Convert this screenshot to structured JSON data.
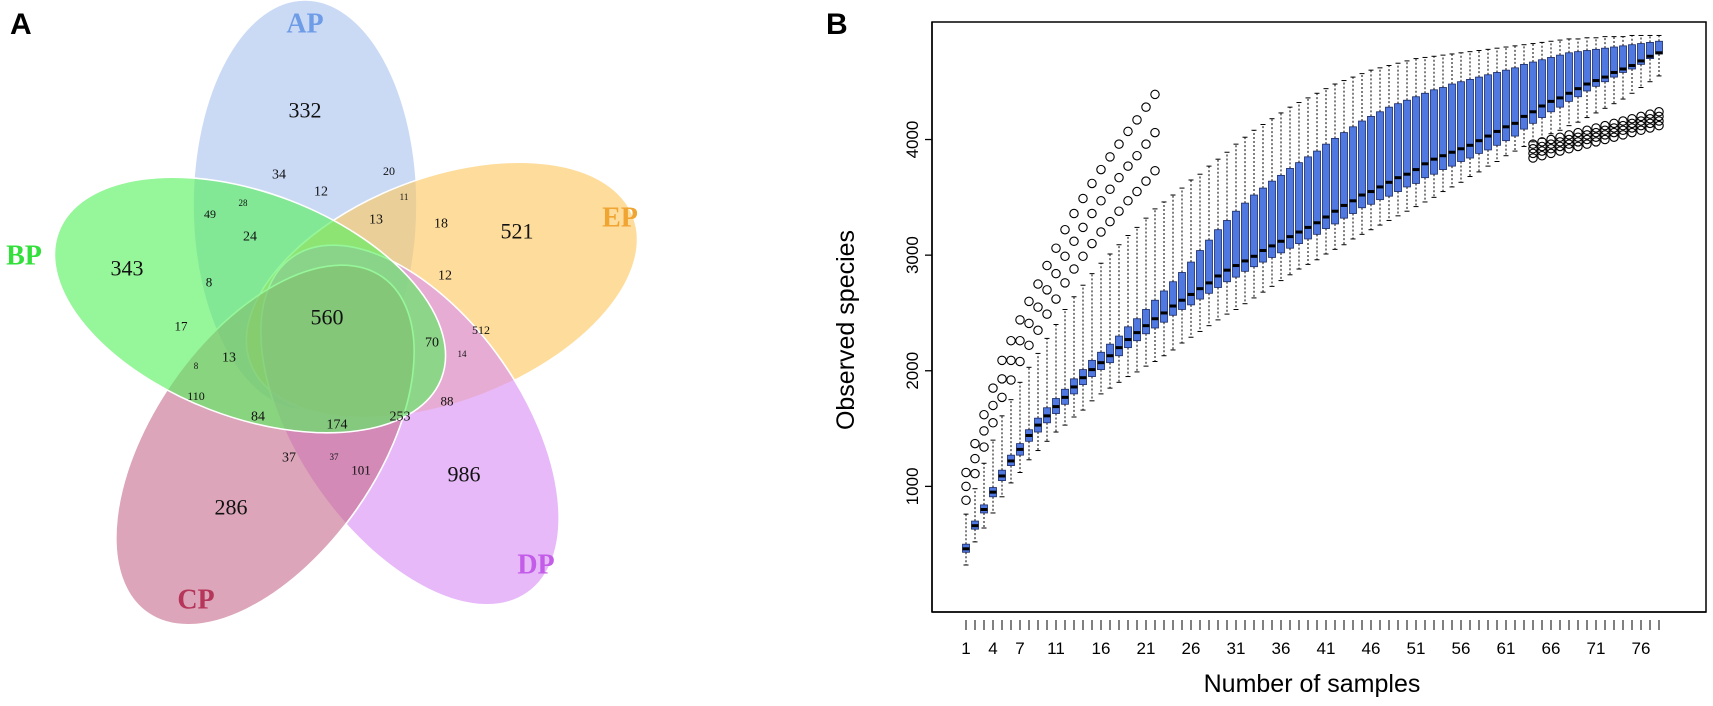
{
  "panels": {
    "a_label": "A",
    "b_label": "B"
  },
  "venn": {
    "sets": [
      {
        "name": "AP",
        "color": "#6f9ce6",
        "fill": "#a9c4ef"
      },
      {
        "name": "EP",
        "color": "#f0a431",
        "fill": "#fdc85f"
      },
      {
        "name": "DP",
        "color": "#c35ce8",
        "fill": "#d98ef5"
      },
      {
        "name": "CP",
        "color": "#b5365a",
        "fill": "#c76e8e"
      },
      {
        "name": "BP",
        "color": "#33e03b",
        "fill": "#56f05c"
      }
    ],
    "counts": [
      "332",
      "521",
      "986",
      "286",
      "343",
      "34",
      "20",
      "28",
      "49",
      "12",
      "11",
      "18",
      "24",
      "13",
      "12",
      "8",
      "560",
      "17",
      "70",
      "512",
      "14",
      "13",
      "8",
      "110",
      "84",
      "174",
      "253",
      "88",
      "37",
      "37",
      "101"
    ]
  },
  "chart_data": {
    "type": "box",
    "title": "",
    "xlabel": "Number of samples",
    "ylabel": "Observed species",
    "x_ticks": [
      "1",
      "4",
      "7",
      "11",
      "16",
      "21",
      "26",
      "31",
      "36",
      "41",
      "46",
      "51",
      "56",
      "61",
      "66",
      "71",
      "76"
    ],
    "y_ticks": [
      "1000",
      "2000",
      "3000",
      "4000"
    ],
    "n_samples": 78,
    "xlim": [
      0,
      80
    ],
    "ylim": [
      0,
      4930
    ],
    "series": [
      {
        "name": "median",
        "values": [
          460,
          660,
          800,
          950,
          1090,
          1220,
          1320,
          1440,
          1530,
          1610,
          1690,
          1770,
          1860,
          1940,
          2010,
          2070,
          2130,
          2200,
          2270,
          2330,
          2390,
          2450,
          2500,
          2560,
          2610,
          2660,
          2710,
          2760,
          2820,
          2870,
          2910,
          2950,
          2990,
          3040,
          3080,
          3120,
          3160,
          3200,
          3240,
          3280,
          3330,
          3380,
          3430,
          3470,
          3520,
          3550,
          3590,
          3630,
          3670,
          3700,
          3740,
          3790,
          3830,
          3860,
          3890,
          3920,
          3950,
          3990,
          4030,
          4070,
          4110,
          4140,
          4200,
          4240,
          4290,
          4330,
          4360,
          4400,
          4440,
          4480,
          4510,
          4540,
          4580,
          4610,
          4640,
          4680,
          4720,
          4750
        ]
      },
      {
        "name": "q1",
        "values": [
          430,
          630,
          770,
          910,
          1050,
          1180,
          1270,
          1390,
          1470,
          1550,
          1630,
          1710,
          1800,
          1880,
          1950,
          2010,
          2070,
          2130,
          2200,
          2260,
          2320,
          2370,
          2420,
          2480,
          2530,
          2570,
          2620,
          2670,
          2720,
          2770,
          2810,
          2860,
          2900,
          2940,
          2980,
          3020,
          3060,
          3100,
          3140,
          3180,
          3230,
          3270,
          3320,
          3360,
          3410,
          3440,
          3480,
          3510,
          3550,
          3590,
          3620,
          3670,
          3700,
          3740,
          3770,
          3810,
          3840,
          3880,
          3910,
          3950,
          3990,
          4030,
          4090,
          4140,
          4190,
          4240,
          4280,
          4330,
          4370,
          4420,
          4460,
          4500,
          4540,
          4580,
          4610,
          4650,
          4700,
          4740
        ]
      },
      {
        "name": "q3",
        "values": [
          500,
          700,
          840,
          990,
          1140,
          1270,
          1370,
          1490,
          1590,
          1680,
          1760,
          1840,
          1930,
          2010,
          2090,
          2160,
          2230,
          2300,
          2380,
          2450,
          2530,
          2610,
          2690,
          2770,
          2850,
          2940,
          3040,
          3130,
          3220,
          3300,
          3380,
          3450,
          3520,
          3580,
          3640,
          3690,
          3750,
          3800,
          3850,
          3900,
          3960,
          4010,
          4060,
          4110,
          4160,
          4200,
          4240,
          4280,
          4310,
          4340,
          4370,
          4400,
          4430,
          4450,
          4480,
          4500,
          4520,
          4540,
          4560,
          4580,
          4600,
          4620,
          4650,
          4670,
          4690,
          4710,
          4730,
          4750,
          4760,
          4770,
          4780,
          4790,
          4800,
          4810,
          4820,
          4830,
          4840,
          4850
        ]
      },
      {
        "name": "min",
        "values": [
          320,
          520,
          640,
          770,
          910,
          1030,
          1120,
          1230,
          1310,
          1390,
          1470,
          1530,
          1600,
          1660,
          1740,
          1800,
          1850,
          1900,
          1950,
          1990,
          2040,
          2080,
          2130,
          2180,
          2240,
          2290,
          2340,
          2390,
          2440,
          2490,
          2530,
          2580,
          2630,
          2680,
          2730,
          2780,
          2830,
          2880,
          2920,
          2960,
          3010,
          3050,
          3090,
          3140,
          3180,
          3220,
          3260,
          3300,
          3340,
          3380,
          3420,
          3460,
          3500,
          3550,
          3590,
          3630,
          3680,
          3720,
          3770,
          3810,
          3860,
          3900,
          3940,
          3980,
          4010,
          4050,
          4080,
          4120,
          4150,
          4190,
          4230,
          4270,
          4310,
          4350,
          4400,
          4450,
          4500,
          4550
        ]
      },
      {
        "name": "max",
        "values": [
          760,
          980,
          1200,
          1400,
          1610,
          1750,
          1900,
          2030,
          2150,
          2280,
          2400,
          2530,
          2640,
          2740,
          2840,
          2930,
          3010,
          3090,
          3170,
          3240,
          3320,
          3400,
          3460,
          3520,
          3580,
          3650,
          3700,
          3770,
          3830,
          3890,
          3960,
          4020,
          4080,
          4130,
          4180,
          4230,
          4280,
          4320,
          4360,
          4400,
          4440,
          4480,
          4510,
          4540,
          4570,
          4600,
          4620,
          4640,
          4660,
          4680,
          4700,
          4710,
          4720,
          4730,
          4740,
          4750,
          4760,
          4770,
          4780,
          4790,
          4800,
          4810,
          4820,
          4830,
          4840,
          4850,
          4860,
          4870,
          4870,
          4880,
          4880,
          4890,
          4890,
          4890,
          4900,
          4900,
          4900,
          4900
        ]
      }
    ]
  }
}
